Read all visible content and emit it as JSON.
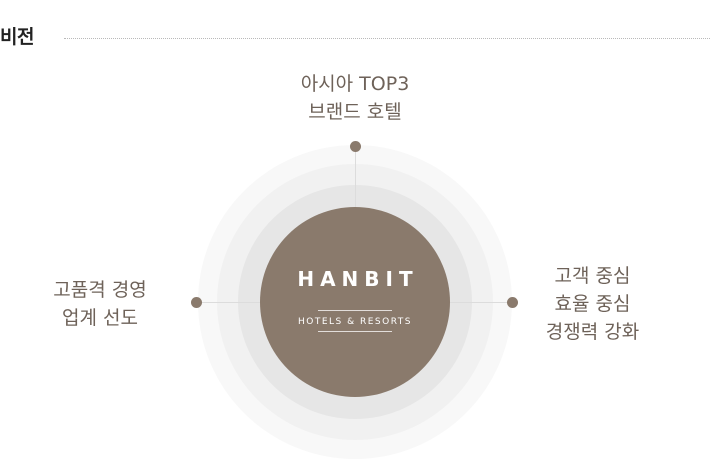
{
  "section": {
    "title": "비전"
  },
  "brand": {
    "name": "HANBIT",
    "subtitle": "HOTELS & RESORTS",
    "color": "#8a7a6c"
  },
  "vision_items": {
    "top": [
      "아시아 TOP3",
      "브랜드 호텔"
    ],
    "left": [
      "고품격 경영",
      "업계 선도"
    ],
    "right": [
      "고객 중심",
      "효율 중심",
      "경쟁력 강화"
    ]
  }
}
